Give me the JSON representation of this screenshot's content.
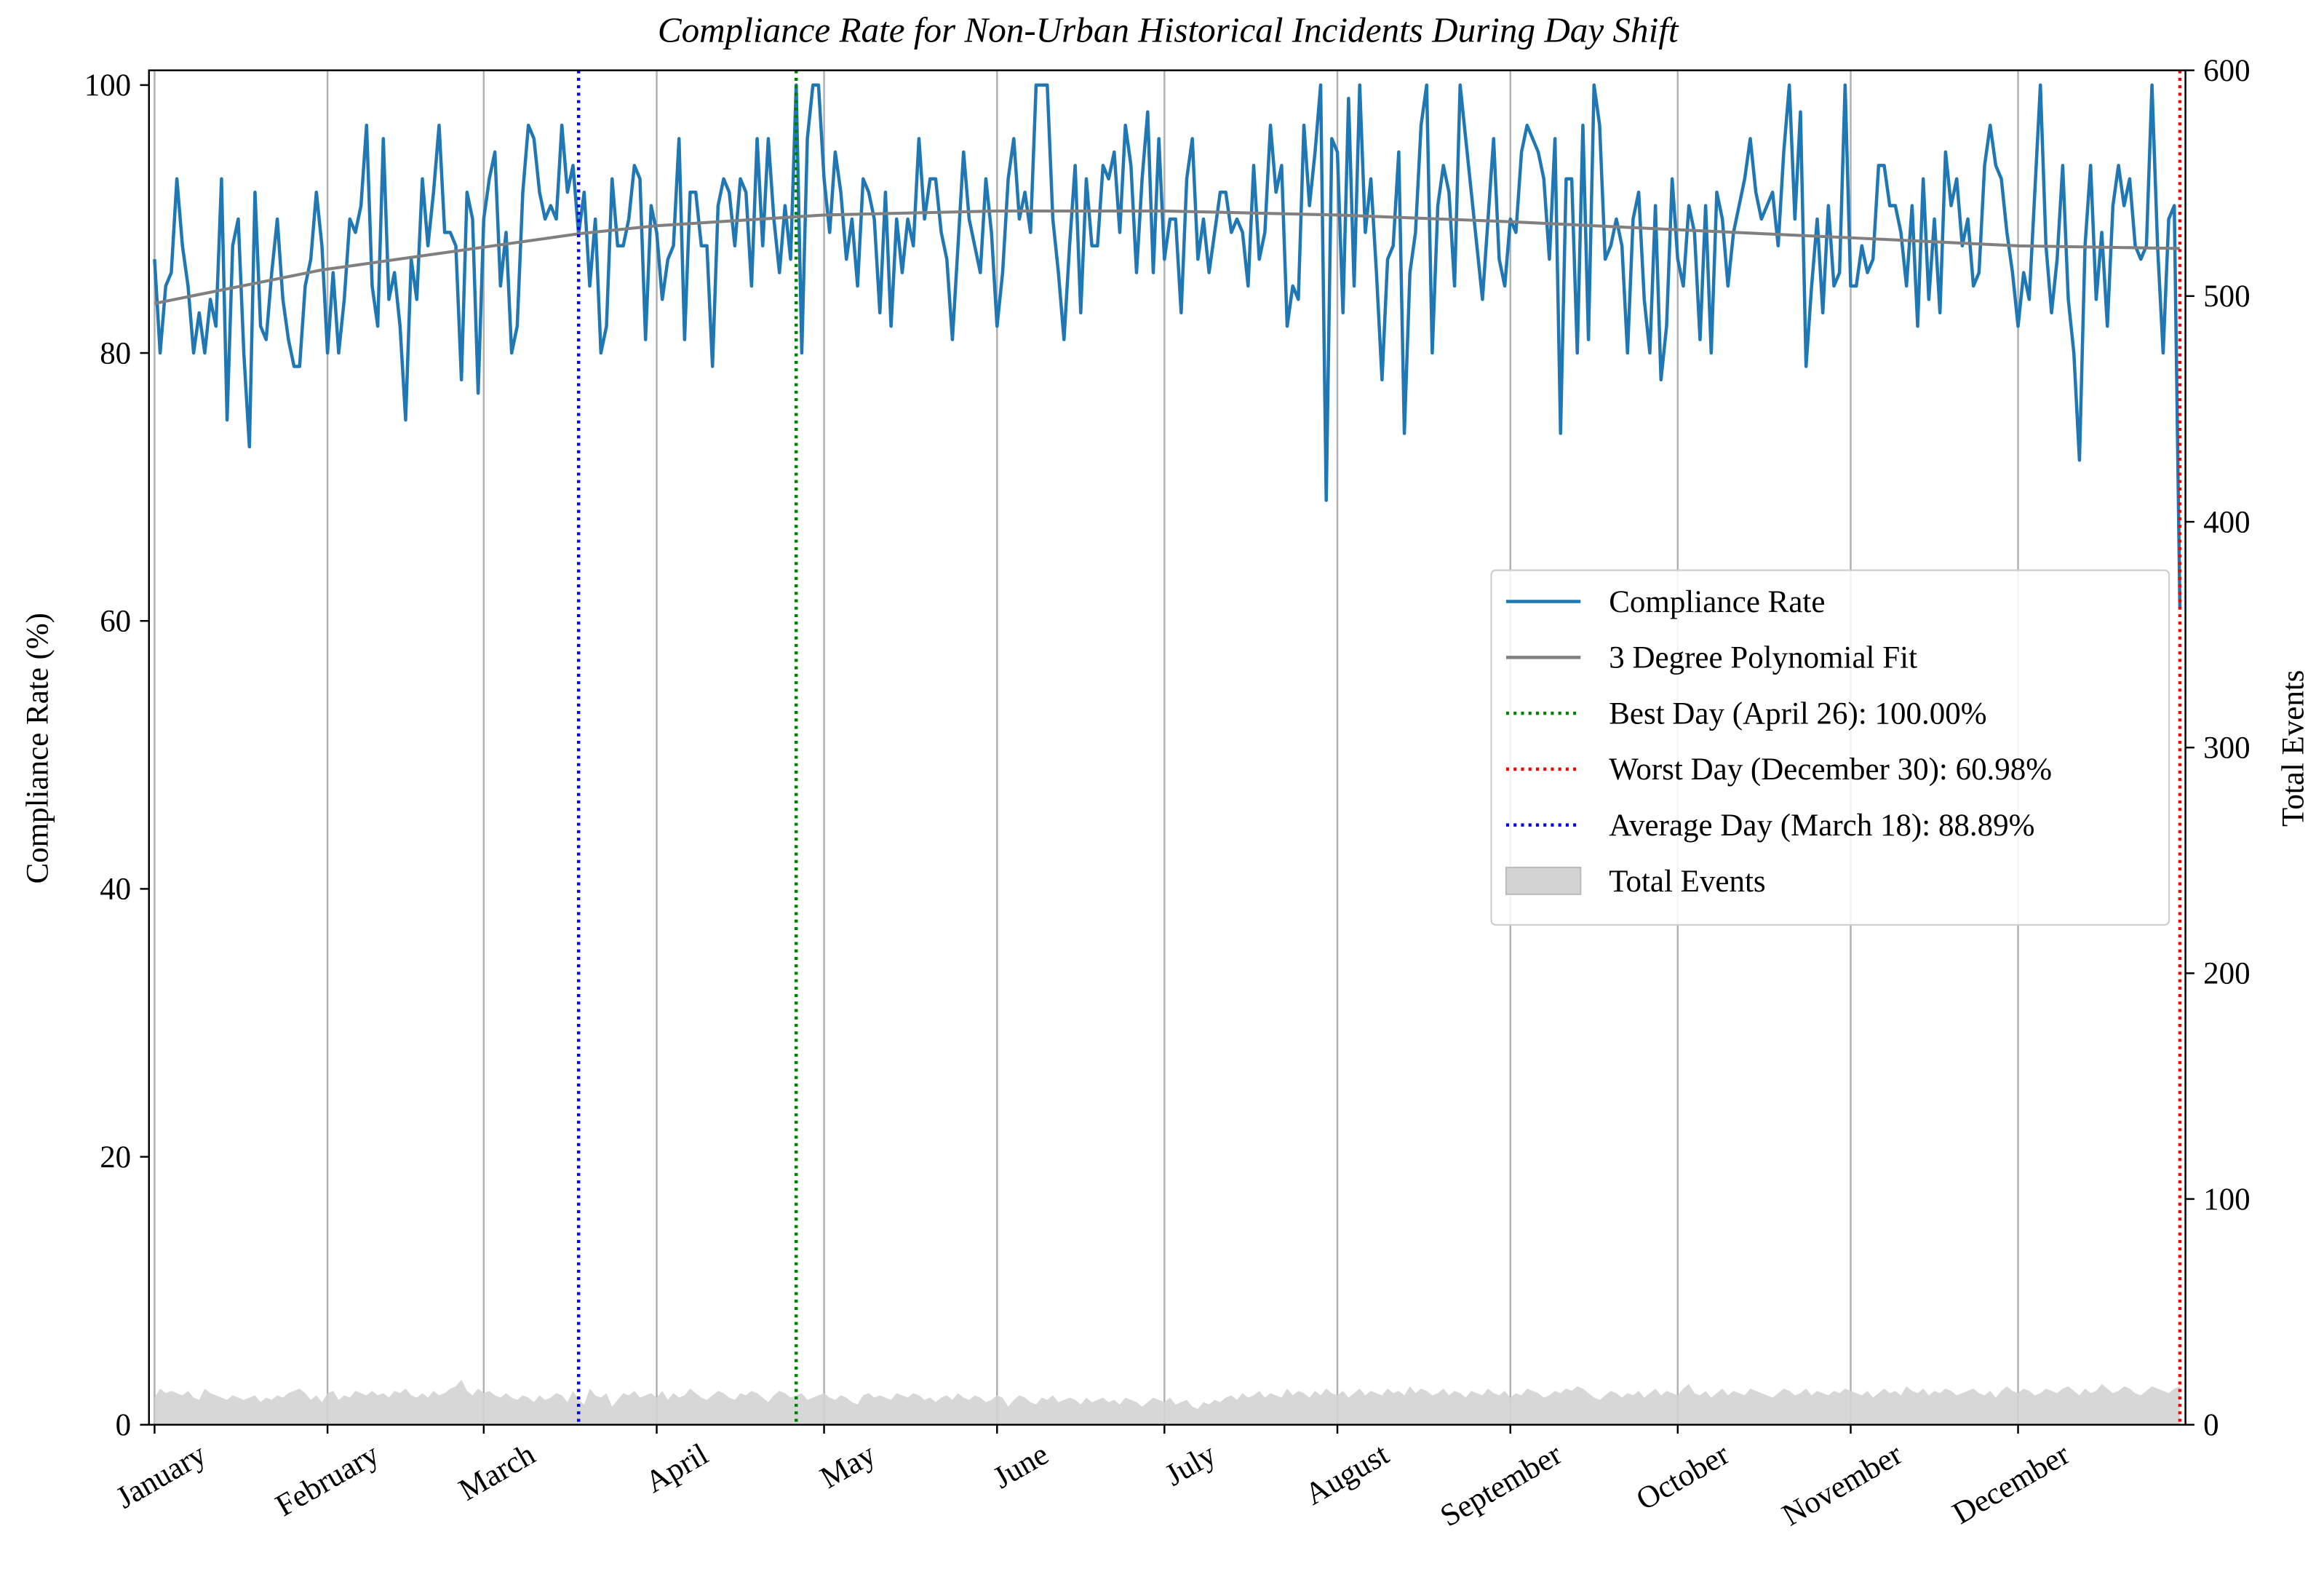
{
  "chart_data": {
    "type": "line",
    "title": "Compliance Rate for Non-Urban Historical Incidents During Day Shift",
    "y_label": "Compliance Rate (%)",
    "y2_label": "Total Events",
    "xlim": [
      -1,
      364
    ],
    "ylim": [
      0,
      101.1
    ],
    "y2lim": [
      0,
      600
    ],
    "xticks": [
      {
        "value": 0,
        "label": "January"
      },
      {
        "value": 31,
        "label": "February"
      },
      {
        "value": 59,
        "label": "March"
      },
      {
        "value": 90,
        "label": "April"
      },
      {
        "value": 120,
        "label": "May"
      },
      {
        "value": 151,
        "label": "June"
      },
      {
        "value": 181,
        "label": "July"
      },
      {
        "value": 212,
        "label": "August"
      },
      {
        "value": 243,
        "label": "September"
      },
      {
        "value": 273,
        "label": "October"
      },
      {
        "value": 304,
        "label": "November"
      },
      {
        "value": 334,
        "label": "December"
      }
    ],
    "yticks": [
      0,
      20,
      40,
      60,
      80,
      100
    ],
    "y2ticks": [
      0,
      100,
      200,
      300,
      400,
      500,
      600
    ],
    "grid": "x",
    "legend": "center right",
    "x": [
      0,
      1,
      2,
      3,
      4,
      5,
      6,
      7,
      8,
      9,
      10,
      11,
      12,
      13,
      14,
      15,
      16,
      17,
      18,
      19,
      20,
      21,
      22,
      23,
      24,
      25,
      26,
      27,
      28,
      29,
      30,
      31,
      32,
      33,
      34,
      35,
      36,
      37,
      38,
      39,
      40,
      41,
      42,
      43,
      44,
      45,
      46,
      47,
      48,
      49,
      50,
      51,
      52,
      53,
      54,
      55,
      56,
      57,
      58,
      59,
      60,
      61,
      62,
      63,
      64,
      65,
      66,
      67,
      68,
      69,
      70,
      71,
      72,
      73,
      74,
      75,
      76,
      77,
      78,
      79,
      80,
      81,
      82,
      83,
      84,
      85,
      86,
      87,
      88,
      89,
      90,
      91,
      92,
      93,
      94,
      95,
      96,
      97,
      98,
      99,
      100,
      101,
      102,
      103,
      104,
      105,
      106,
      107,
      108,
      109,
      110,
      111,
      112,
      113,
      114,
      115,
      116,
      117,
      118,
      119,
      120,
      121,
      122,
      123,
      124,
      125,
      126,
      127,
      128,
      129,
      130,
      131,
      132,
      133,
      134,
      135,
      136,
      137,
      138,
      139,
      140,
      141,
      142,
      143,
      144,
      145,
      146,
      147,
      148,
      149,
      150,
      151,
      152,
      153,
      154,
      155,
      156,
      157,
      158,
      159,
      160,
      161,
      162,
      163,
      164,
      165,
      166,
      167,
      168,
      169,
      170,
      171,
      172,
      173,
      174,
      175,
      176,
      177,
      178,
      179,
      180,
      181,
      182,
      183,
      184,
      185,
      186,
      187,
      188,
      189,
      190,
      191,
      192,
      193,
      194,
      195,
      196,
      197,
      198,
      199,
      200,
      201,
      202,
      203,
      204,
      205,
      206,
      207,
      208,
      209,
      210,
      211,
      212,
      213,
      214,
      215,
      216,
      217,
      218,
      219,
      220,
      221,
      222,
      223,
      224,
      225,
      226,
      227,
      228,
      229,
      230,
      231,
      232,
      233,
      234,
      235,
      236,
      237,
      238,
      239,
      240,
      241,
      242,
      243,
      244,
      245,
      246,
      247,
      248,
      249,
      250,
      251,
      252,
      253,
      254,
      255,
      256,
      257,
      258,
      259,
      260,
      261,
      262,
      263,
      264,
      265,
      266,
      267,
      268,
      269,
      270,
      271,
      272,
      273,
      274,
      275,
      276,
      277,
      278,
      279,
      280,
      281,
      282,
      283,
      284,
      285,
      286,
      287,
      288,
      289,
      290,
      291,
      292,
      293,
      294,
      295,
      296,
      297,
      298,
      299,
      300,
      301,
      302,
      303,
      304,
      305,
      306,
      307,
      308,
      309,
      310,
      311,
      312,
      313,
      314,
      315,
      316,
      317,
      318,
      319,
      320,
      321,
      322,
      323,
      324,
      325,
      326,
      327,
      328,
      329,
      330,
      331,
      332,
      333,
      334,
      335,
      336,
      337,
      338,
      339,
      340,
      341,
      342,
      343,
      344,
      345,
      346,
      347,
      348,
      349,
      350,
      351,
      352,
      353,
      354,
      355,
      356,
      357,
      358,
      359,
      360,
      361,
      362,
      363
    ],
    "series": [
      {
        "name": "Compliance Rate",
        "color": "#1f77b4",
        "values": [
          87,
          80,
          85,
          86,
          93,
          88,
          85,
          80,
          83,
          80,
          84,
          82,
          93,
          75,
          88,
          90,
          80,
          73,
          92,
          82,
          81,
          86,
          90,
          84,
          81,
          79,
          79,
          85,
          87,
          92,
          88,
          80,
          86,
          80,
          84,
          90,
          89,
          91,
          97,
          85,
          82,
          96,
          84,
          86,
          82,
          75,
          87,
          84,
          93,
          88,
          92,
          97,
          89,
          89,
          88,
          78,
          92,
          90,
          77,
          90,
          93,
          95,
          85,
          89,
          80,
          82,
          92,
          97,
          96,
          92,
          90,
          91,
          90,
          97,
          92,
          94,
          88.89,
          92,
          85,
          90,
          80,
          82,
          93,
          88,
          88,
          90,
          94,
          93,
          81,
          91,
          89,
          84,
          87,
          88,
          96,
          81,
          92,
          92,
          88,
          88,
          79,
          91,
          93,
          92,
          88,
          93,
          92,
          85,
          96,
          88,
          96,
          90,
          86,
          91,
          87,
          100,
          80,
          96,
          100,
          100,
          93,
          89,
          95,
          92,
          87,
          90,
          85,
          93,
          92,
          90,
          83,
          92,
          82,
          90,
          86,
          90,
          88,
          96,
          90,
          93,
          93,
          89,
          87,
          81,
          88,
          95,
          90,
          88,
          86,
          93,
          89,
          82,
          86,
          93,
          96,
          90,
          92,
          89,
          100,
          100,
          100,
          90,
          86,
          81,
          88,
          94,
          83,
          93,
          88,
          88,
          94,
          93,
          95,
          89,
          97,
          94,
          86,
          93,
          98,
          86,
          96,
          87,
          90,
          90,
          83,
          93,
          96,
          87,
          90,
          86,
          89,
          92,
          92,
          89,
          90,
          89,
          85,
          94,
          87,
          89,
          97,
          92,
          94,
          82,
          85,
          84,
          97,
          91,
          95,
          100,
          69,
          96,
          95,
          83,
          99,
          85,
          100,
          89,
          93,
          86,
          78,
          87,
          88,
          95,
          74,
          86,
          89,
          97,
          100,
          80,
          91,
          94,
          92,
          85,
          100,
          96,
          92,
          88,
          84,
          90,
          96,
          87,
          85,
          90,
          89,
          95,
          97,
          96,
          95,
          93,
          87,
          96,
          74,
          93,
          93,
          80,
          97,
          81,
          100,
          97,
          87,
          88,
          90,
          88,
          80,
          90,
          92,
          84,
          80,
          91,
          78,
          82,
          93,
          87,
          85,
          91,
          89,
          81,
          91,
          80,
          92,
          90,
          85,
          89,
          91,
          93,
          96,
          92,
          90,
          91,
          92,
          88,
          95,
          100,
          90,
          98,
          79,
          85,
          90,
          83,
          91,
          85,
          86,
          100,
          85,
          85,
          88,
          86,
          87,
          94,
          94,
          91,
          91,
          89,
          85,
          91,
          82,
          93,
          84,
          90,
          83,
          95,
          91,
          93,
          88,
          90,
          85,
          86,
          94,
          97,
          94,
          93,
          89,
          86,
          82,
          86,
          84,
          92,
          100,
          88,
          83,
          87,
          94,
          84,
          80,
          72,
          88,
          94,
          84,
          89,
          82,
          91,
          94,
          91,
          93,
          88,
          87,
          88,
          100,
          88,
          80,
          90,
          91,
          60.98
        ]
      },
      {
        "name": "3 Degree Polynomial Fit",
        "color": "#808080",
        "x": [
          0,
          30,
          59,
          76,
          90,
          120,
          151,
          181,
          212,
          243,
          273,
          304,
          334,
          363
        ],
        "values": [
          83.7,
          86.2,
          87.9,
          88.9,
          89.5,
          90.3,
          90.6,
          90.6,
          90.3,
          89.8,
          89.2,
          88.6,
          88.0,
          87.8
        ]
      },
      {
        "name": "Total Events",
        "color": "#d3d3d3",
        "type": "area",
        "axis": "y2",
        "values": [
          12,
          16,
          14,
          15,
          14,
          13,
          15,
          12,
          11,
          16,
          14,
          13,
          12,
          11,
          13,
          12,
          11,
          12,
          13,
          10,
          12,
          11,
          13,
          12,
          14,
          15,
          16,
          14,
          11,
          13,
          10,
          14,
          15,
          11,
          13,
          12,
          15,
          14,
          13,
          15,
          13,
          14,
          12,
          15,
          14,
          16,
          13,
          12,
          14,
          12,
          15,
          13,
          14,
          16,
          17,
          20,
          15,
          13,
          16,
          14,
          15,
          13,
          12,
          14,
          12,
          11,
          13,
          12,
          10,
          13,
          11,
          12,
          14,
          13,
          10,
          15,
          11,
          9,
          16,
          13,
          12,
          14,
          8,
          11,
          14,
          13,
          15,
          12,
          13,
          14,
          12,
          15,
          11,
          14,
          12,
          13,
          16,
          14,
          12,
          11,
          13,
          15,
          14,
          12,
          11,
          14,
          13,
          15,
          14,
          12,
          10,
          13,
          15,
          14,
          12,
          13,
          14,
          11,
          12,
          13,
          14,
          12,
          11,
          13,
          12,
          10,
          9,
          13,
          14,
          12,
          13,
          12,
          11,
          14,
          13,
          12,
          14,
          13,
          11,
          12,
          10,
          12,
          13,
          11,
          14,
          12,
          11,
          13,
          12,
          10,
          11,
          13,
          12,
          8,
          11,
          13,
          12,
          10,
          9,
          12,
          11,
          13,
          10,
          11,
          12,
          11,
          9,
          12,
          10,
          11,
          12,
          10,
          11,
          9,
          12,
          11,
          10,
          8,
          10,
          12,
          11,
          10,
          12,
          9,
          10,
          11,
          8,
          7,
          10,
          9,
          11,
          10,
          12,
          13,
          11,
          14,
          12,
          13,
          15,
          12,
          14,
          13,
          12,
          16,
          13,
          15,
          14,
          12,
          15,
          13,
          16,
          14,
          13,
          15,
          12,
          14,
          16,
          13,
          15,
          14,
          13,
          16,
          14,
          15,
          13,
          17,
          14,
          16,
          15,
          13,
          14,
          16,
          13,
          15,
          14,
          12,
          15,
          14,
          13,
          16,
          14,
          13,
          15,
          12,
          14,
          13,
          16,
          15,
          14,
          12,
          13,
          15,
          14,
          16,
          15,
          17,
          16,
          14,
          12,
          11,
          13,
          15,
          14,
          12,
          14,
          13,
          15,
          12,
          14,
          16,
          13,
          15,
          14,
          13,
          16,
          18,
          14,
          13,
          15,
          12,
          14,
          16,
          13,
          15,
          14,
          13,
          16,
          15,
          14,
          13,
          12,
          14,
          16,
          15,
          13,
          14,
          16,
          13,
          15,
          14,
          13,
          15,
          14,
          16,
          15,
          14,
          13,
          15,
          12,
          14,
          16,
          14,
          15,
          13,
          17,
          15,
          14,
          16,
          13,
          15,
          14,
          16,
          15,
          13,
          14,
          15,
          16,
          14,
          13,
          15,
          12,
          15,
          17,
          15,
          14,
          16,
          15,
          13,
          14,
          16,
          15,
          14,
          16,
          17,
          15,
          13,
          16,
          14,
          15,
          18,
          16,
          14,
          15,
          17,
          16,
          14,
          13,
          15,
          17,
          16,
          15,
          14,
          16,
          17
        ]
      }
    ],
    "markers": [
      {
        "name": "Best Day (April 26): 100.00%",
        "x": 115,
        "color": "#008000"
      },
      {
        "name": "Worst Day (December 30): 60.98%",
        "x": 363,
        "color": "#ff0000"
      },
      {
        "name": "Average Day (March 18): 88.89%",
        "x": 76,
        "color": "#0000ff"
      }
    ]
  }
}
